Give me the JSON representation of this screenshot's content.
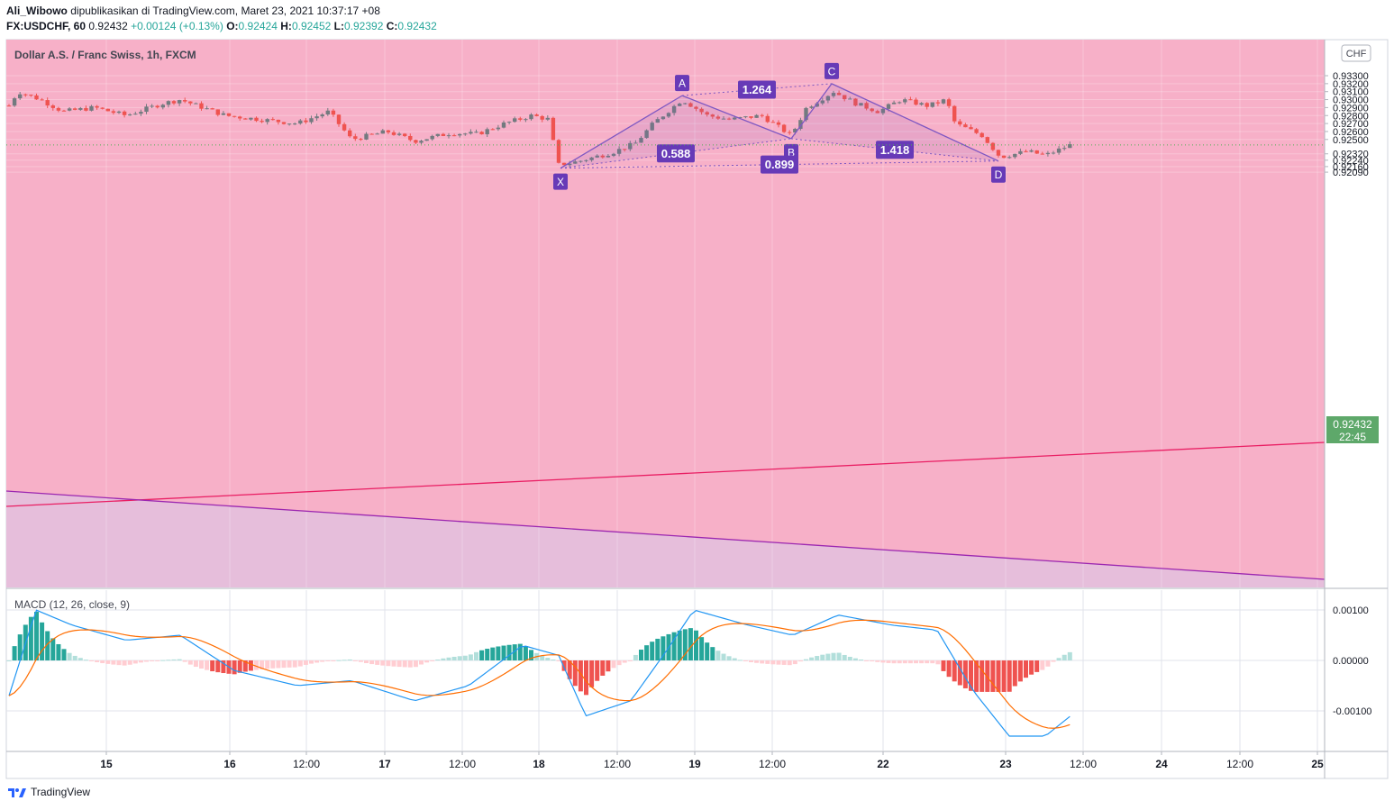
{
  "header": {
    "user": "Ali_Wibowo",
    "published": " dipublikasikan di TradingView.com, Maret 23, 2021 10:37:17 +08",
    "symbol": "FX:USDCHF, 60",
    "price": "0.92432",
    "change": "+0.00124 (+0.13%)",
    "o_label": "O:",
    "o_val": "0.92424",
    "h_label": "H:",
    "h_val": "0.92452",
    "l_label": "L:",
    "l_val": "0.92392",
    "c_label": "C:",
    "c_val": "0.92432"
  },
  "chart_title": "Dollar A.S. / Franc Swiss, 1h, FXCM",
  "currency_badge": "CHF",
  "last_price": "0.92432",
  "countdown": "22:45",
  "footer_brand": "TradingView",
  "colors": {
    "up": "#26a69a",
    "down": "#ef5350",
    "upper_zone": "#f7b0c8",
    "lower_zone": "#e6bedb",
    "pattern_line": "#7e57c2",
    "pattern_label": "#673ab7",
    "trend_red": "#e91e63",
    "trend_purple": "#9c27b0",
    "macd_line": "#2196f3",
    "signal_line": "#ff6d00",
    "price_tag": "#4caf50"
  },
  "chart_data": [
    {
      "type": "candlestick",
      "title": "Dollar A.S. / Franc Swiss, 1h, FXCM",
      "y_axis_ticks": [
        "0.93300",
        "0.93200",
        "0.93100",
        "0.93000",
        "0.92900",
        "0.92800",
        "0.92700",
        "0.92600",
        "0.92500",
        "0.92320",
        "0.92240",
        "0.92160",
        "0.92090"
      ],
      "x_axis_ticks": [
        "15",
        "16",
        "12:00",
        "17",
        "12:00",
        "18",
        "12:00",
        "19",
        "12:00",
        "22",
        "23",
        "12:00",
        "24",
        "12:00",
        "25"
      ],
      "harmonic_pattern": {
        "points": [
          {
            "label": "X",
            "price": 0.9214
          },
          {
            "label": "A",
            "price": 0.9305
          },
          {
            "label": "B",
            "price": 0.9251
          },
          {
            "label": "C",
            "price": 0.932
          },
          {
            "label": "D",
            "price": 0.9223
          }
        ],
        "ratios": [
          "1.264",
          "0.588",
          "1.418",
          "0.899"
        ]
      },
      "last_price": 0.92432
    },
    {
      "type": "line",
      "title": "MACD (12, 26, close, 9)",
      "y_axis_ticks": [
        "0.00100",
        "0.00000",
        "-0.00100"
      ],
      "series": [
        {
          "name": "MACD",
          "color": "#2196f3"
        },
        {
          "name": "Signal",
          "color": "#ff6d00"
        },
        {
          "name": "Histogram",
          "color": "#26a69a"
        }
      ]
    }
  ]
}
